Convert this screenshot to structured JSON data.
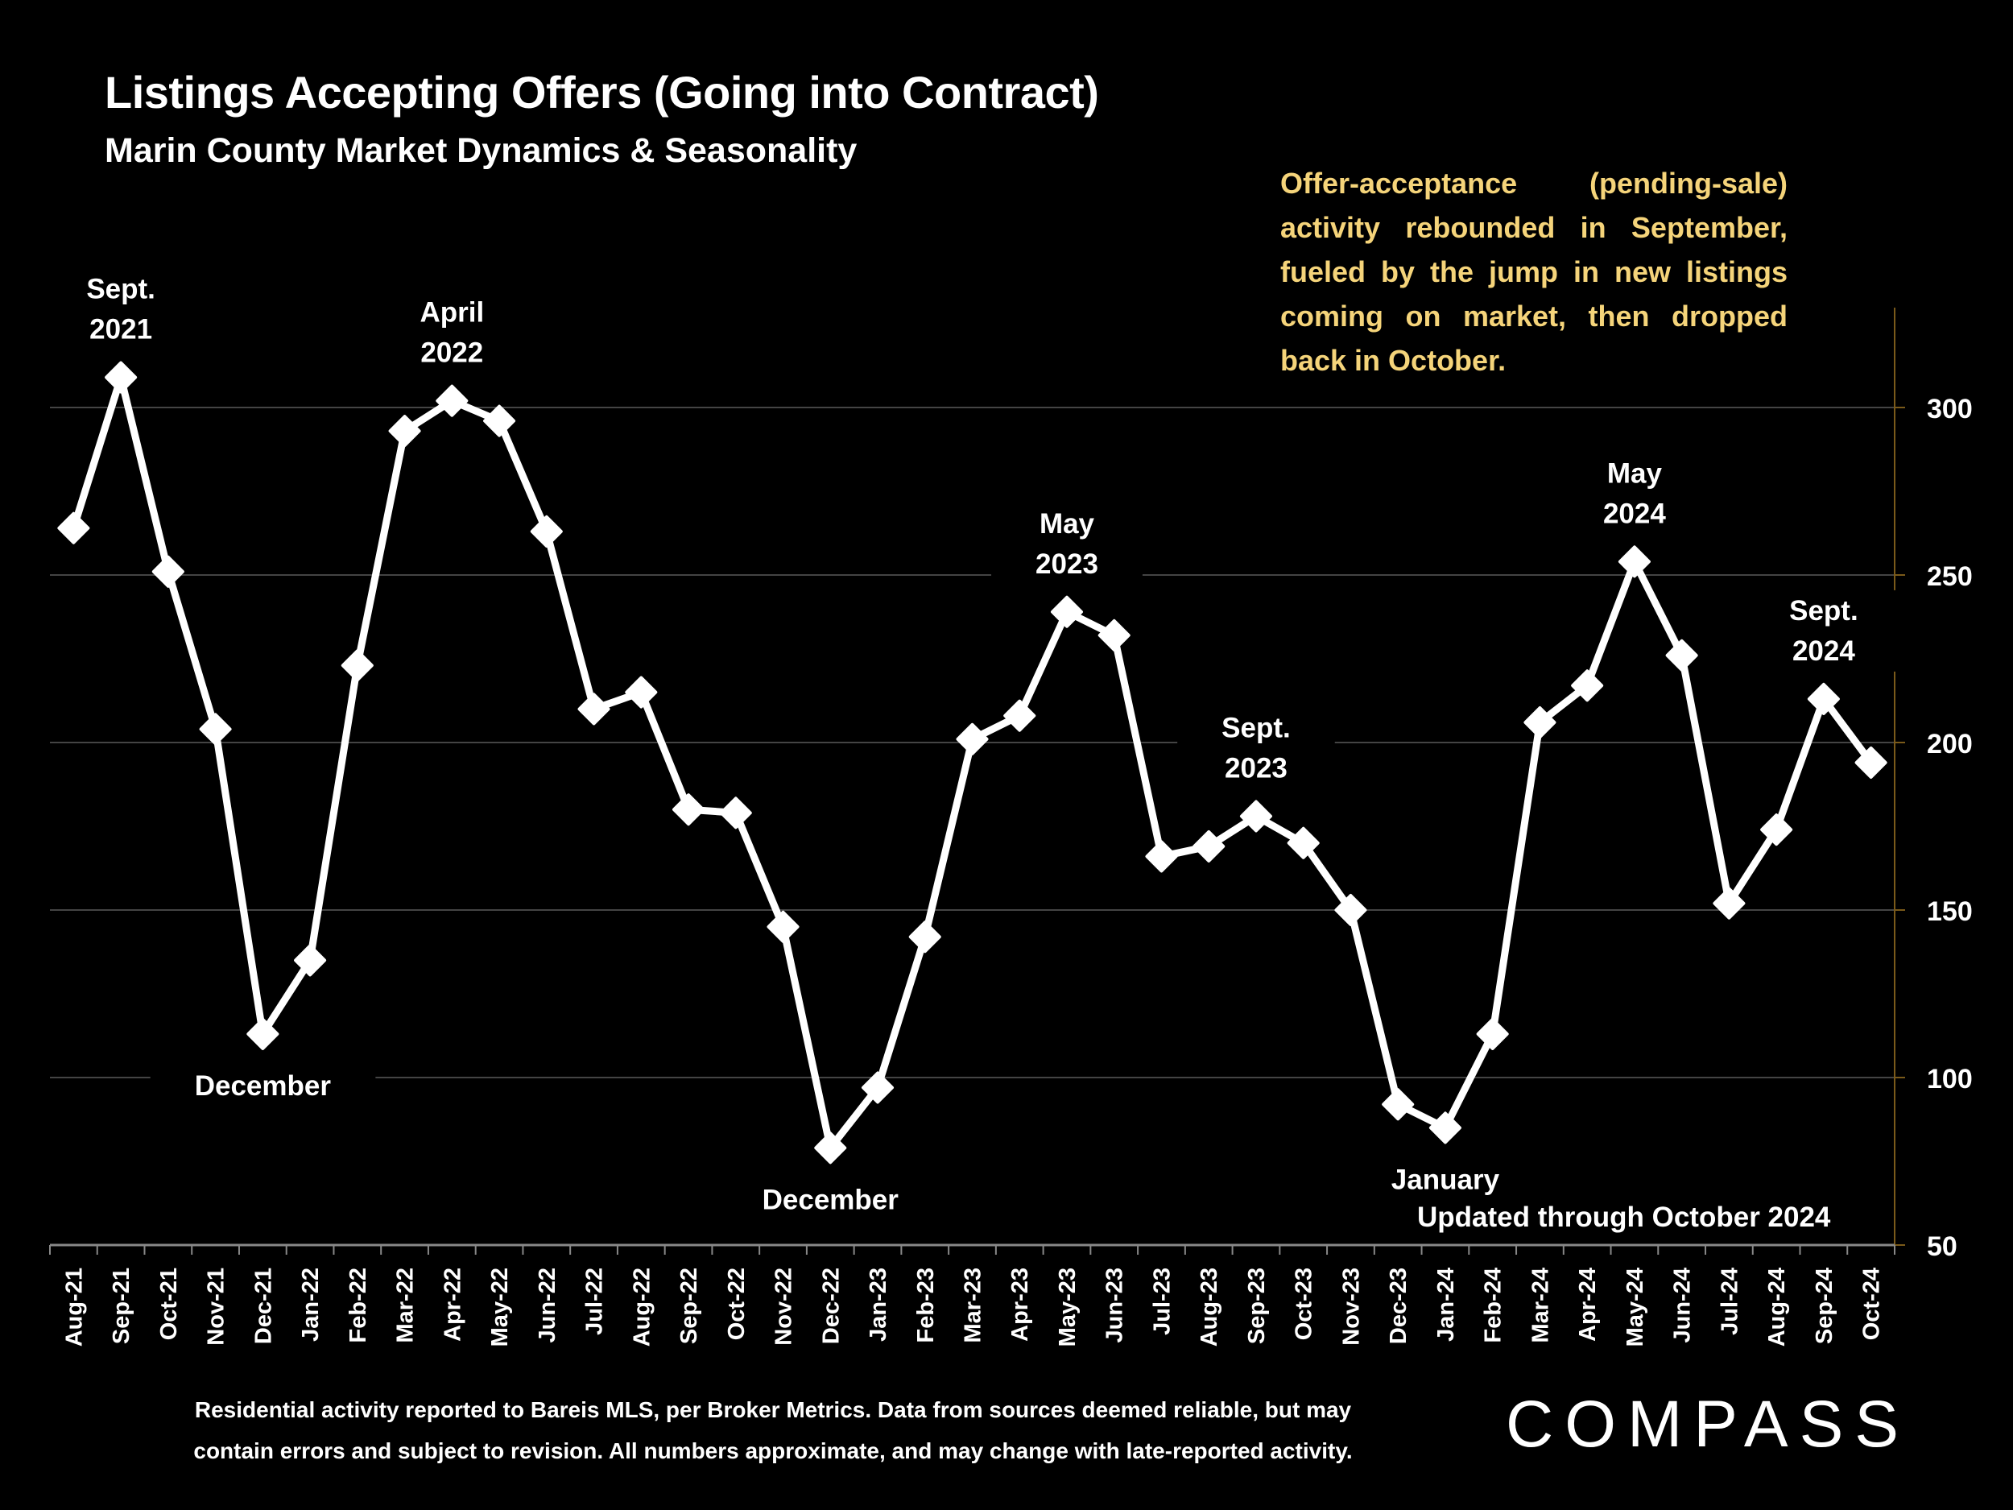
{
  "title": "Listings Accepting Offers (Going into Contract)",
  "subtitle": "Marin County Market Dynamics & Seasonality",
  "annotation": "Offer-acceptance (pending-sale) activity rebounded in September, fueled by the jump in new listings coming on market, then dropped back in October.",
  "updated": "Updated through October 2024",
  "footnote_lines": [
    "Residential activity reported to Bareis MLS, per Broker Metrics. Data from sources deemed reliable, but may",
    "contain errors and subject to revision. All numbers approximate, and may change with late-reported activity."
  ],
  "logo": "COMPASS",
  "colors": {
    "line": "#ffffff",
    "annotation": "#f5d47a",
    "axis": "#7a5a1a",
    "grid": "#444444"
  },
  "chart_data": {
    "type": "line",
    "title": "Listings Accepting Offers (Going into Contract)",
    "xlabel": "",
    "ylabel": "",
    "ylim": [
      50,
      300
    ],
    "yticks": [
      50,
      100,
      150,
      200,
      250,
      300
    ],
    "y_axis_side": "right",
    "grid": true,
    "categories": [
      "Aug-21",
      "Sep-21",
      "Oct-21",
      "Nov-21",
      "Dec-21",
      "Jan-22",
      "Feb-22",
      "Mar-22",
      "Apr-22",
      "May-22",
      "Jun-22",
      "Jul-22",
      "Aug-22",
      "Sep-22",
      "Oct-22",
      "Nov-22",
      "Dec-22",
      "Jan-23",
      "Feb-23",
      "Mar-23",
      "Apr-23",
      "May-23",
      "Jun-23",
      "Jul-23",
      "Aug-23",
      "Sep-23",
      "Oct-23",
      "Nov-23",
      "Dec-23",
      "Jan-24",
      "Feb-24",
      "Mar-24",
      "Apr-24",
      "May-24",
      "Jun-24",
      "Jul-24",
      "Aug-24",
      "Sep-24",
      "Oct-24"
    ],
    "series": [
      {
        "name": "Listings Accepting Offers",
        "values": [
          264,
          309,
          251,
          204,
          113,
          135,
          223,
          293,
          302,
          296,
          263,
          210,
          215,
          180,
          179,
          145,
          79,
          97,
          142,
          201,
          208,
          239,
          232,
          166,
          169,
          178,
          170,
          150,
          92,
          85,
          113,
          206,
          217,
          254,
          226,
          152,
          174,
          213,
          194
        ]
      }
    ],
    "annotations": [
      {
        "text": [
          "Sept.",
          "2021"
        ],
        "index": 1,
        "pos": "above"
      },
      {
        "text": [
          "April",
          "2022"
        ],
        "index": 8,
        "pos": "above"
      },
      {
        "text": [
          "December"
        ],
        "index": 4,
        "pos": "below"
      },
      {
        "text": [
          "December"
        ],
        "index": 16,
        "pos": "below"
      },
      {
        "text": [
          "May",
          "2023"
        ],
        "index": 21,
        "pos": "above"
      },
      {
        "text": [
          "Sept.",
          "2023"
        ],
        "index": 25,
        "pos": "above"
      },
      {
        "text": [
          "January"
        ],
        "index": 29,
        "pos": "below"
      },
      {
        "text": [
          "May",
          "2024"
        ],
        "index": 33,
        "pos": "above"
      },
      {
        "text": [
          "Sept.",
          "2024"
        ],
        "index": 37,
        "pos": "above"
      }
    ]
  }
}
